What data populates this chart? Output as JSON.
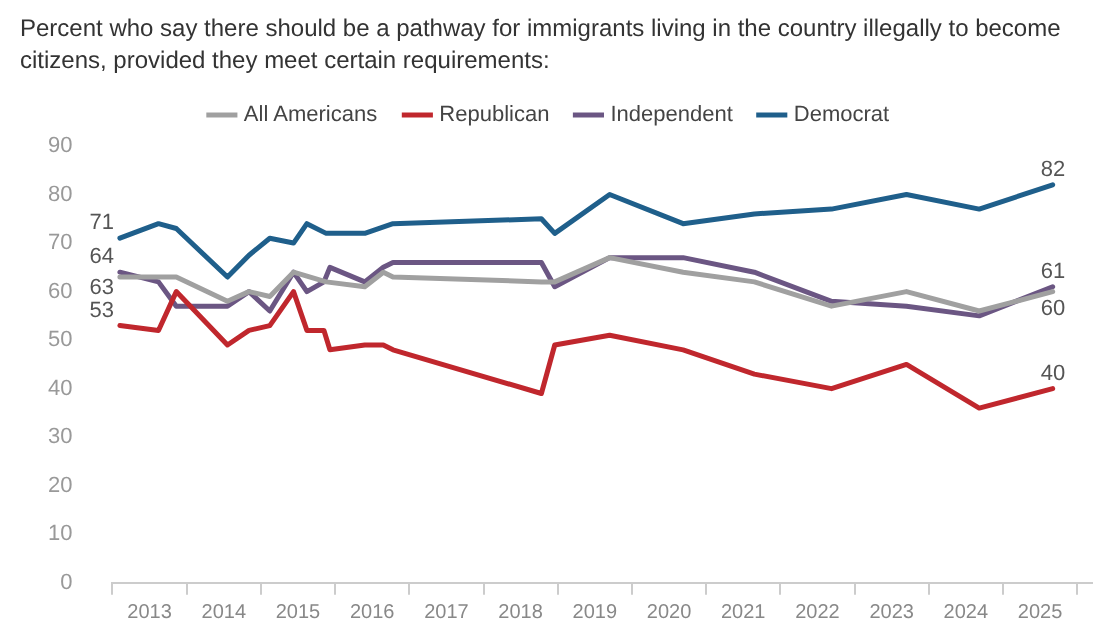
{
  "chart_data": {
    "type": "line",
    "title": "Percent who say there should be a pathway for immigrants living in the country illegally to become citizens, provided they meet certain requirements:",
    "xlim": [
      2013,
      2026.2
    ],
    "xticks": [
      {
        "value": 2013,
        "label": null
      },
      {
        "value": 2013.5,
        "label": "2013"
      },
      {
        "value": 2014,
        "label": null
      },
      {
        "value": 2014.5,
        "label": "2014"
      },
      {
        "value": 2015,
        "label": null
      },
      {
        "value": 2015.5,
        "label": "2015"
      },
      {
        "value": 2016,
        "label": null
      },
      {
        "value": 2016.5,
        "label": "2016"
      },
      {
        "value": 2017,
        "label": null
      },
      {
        "value": 2017.5,
        "label": "2017"
      },
      {
        "value": 2018,
        "label": null
      },
      {
        "value": 2018.5,
        "label": "2018"
      },
      {
        "value": 2019,
        "label": null
      },
      {
        "value": 2019.5,
        "label": "2019"
      },
      {
        "value": 2020,
        "label": null
      },
      {
        "value": 2020.5,
        "label": "2020"
      },
      {
        "value": 2021,
        "label": null
      },
      {
        "value": 2021.5,
        "label": "2021"
      },
      {
        "value": 2022,
        "label": null
      },
      {
        "value": 2022.5,
        "label": "2022"
      },
      {
        "value": 2023,
        "label": null
      },
      {
        "value": 2023.5,
        "label": "2023"
      },
      {
        "value": 2024,
        "label": null
      },
      {
        "value": 2024.5,
        "label": "2024"
      },
      {
        "value": 2025,
        "label": null
      },
      {
        "value": 2025.5,
        "label": "2025"
      },
      {
        "value": 2026,
        "label": null
      }
    ],
    "ylim": [
      0,
      90
    ],
    "yticks": [
      0,
      10,
      20,
      30,
      40,
      50,
      60,
      70,
      80,
      90
    ],
    "grid": false,
    "legend": "top",
    "marker": "none",
    "line_style": "solid",
    "series": [
      {
        "name": "All Americans",
        "color": "#a0a0a0",
        "x": [
          2013.1,
          2013.86,
          2014.55,
          2014.84,
          2015.12,
          2015.44,
          2015.88,
          2016.4,
          2016.65,
          2016.78,
          2018.78,
          2018.96,
          2019.7,
          2020.69,
          2021.65,
          2022.69,
          2023.7,
          2024.68,
          2025.67
        ],
        "values": [
          63,
          63,
          58,
          60,
          59,
          64,
          62,
          61,
          64,
          63,
          62,
          62,
          67,
          64,
          62,
          57,
          60,
          56,
          60
        ],
        "value_labels": [
          "63",
          null,
          null,
          null,
          null,
          null,
          null,
          null,
          null,
          null,
          null,
          null,
          null,
          null,
          null,
          null,
          null,
          null,
          "60"
        ]
      },
      {
        "name": "Republican",
        "color": "#c0272d",
        "x": [
          2013.1,
          2013.62,
          2013.86,
          2014.55,
          2014.84,
          2015.12,
          2015.44,
          2015.62,
          2015.85,
          2015.93,
          2016.4,
          2016.65,
          2016.78,
          2018.78,
          2018.96,
          2019.7,
          2020.69,
          2021.65,
          2022.69,
          2023.7,
          2024.68,
          2025.67
        ],
        "values": [
          53,
          52,
          60,
          49,
          52,
          53,
          60,
          52,
          52,
          48,
          49,
          49,
          48,
          39,
          49,
          51,
          48,
          43,
          40,
          45,
          36,
          40
        ],
        "value_labels": [
          "53",
          null,
          null,
          null,
          null,
          null,
          null,
          null,
          null,
          null,
          null,
          null,
          null,
          null,
          null,
          null,
          null,
          null,
          null,
          null,
          null,
          "40"
        ]
      },
      {
        "name": "Independent",
        "color": "#6b5683",
        "x": [
          2013.1,
          2013.62,
          2013.86,
          2014.55,
          2014.84,
          2015.12,
          2015.44,
          2015.62,
          2015.85,
          2015.93,
          2016.4,
          2016.65,
          2016.78,
          2018.78,
          2018.96,
          2019.7,
          2020.69,
          2021.65,
          2022.69,
          2023.7,
          2024.68,
          2025.67
        ],
        "values": [
          64,
          62,
          57,
          57,
          60,
          56,
          64,
          60,
          62,
          65,
          62,
          65,
          66,
          66,
          61,
          67,
          67,
          64,
          58,
          57,
          55,
          61
        ],
        "value_labels": [
          "64",
          null,
          null,
          null,
          null,
          null,
          null,
          null,
          null,
          null,
          null,
          null,
          null,
          null,
          null,
          null,
          null,
          null,
          null,
          null,
          null,
          "61"
        ]
      },
      {
        "name": "Democrat",
        "color": "#1f5f8b",
        "x": [
          2013.1,
          2013.62,
          2013.86,
          2014.55,
          2014.84,
          2015.12,
          2015.44,
          2015.62,
          2015.88,
          2016.4,
          2016.78,
          2018.78,
          2018.96,
          2019.7,
          2020.69,
          2021.65,
          2022.69,
          2023.7,
          2024.68,
          2025.67
        ],
        "values": [
          71,
          74,
          73,
          63,
          67.5,
          71,
          70,
          74,
          72,
          72,
          74,
          75,
          72,
          80,
          74,
          76,
          77,
          80,
          77,
          82
        ],
        "value_labels": [
          "71",
          null,
          null,
          null,
          null,
          null,
          null,
          null,
          null,
          null,
          null,
          null,
          null,
          null,
          null,
          null,
          null,
          null,
          null,
          "82"
        ]
      }
    ]
  }
}
